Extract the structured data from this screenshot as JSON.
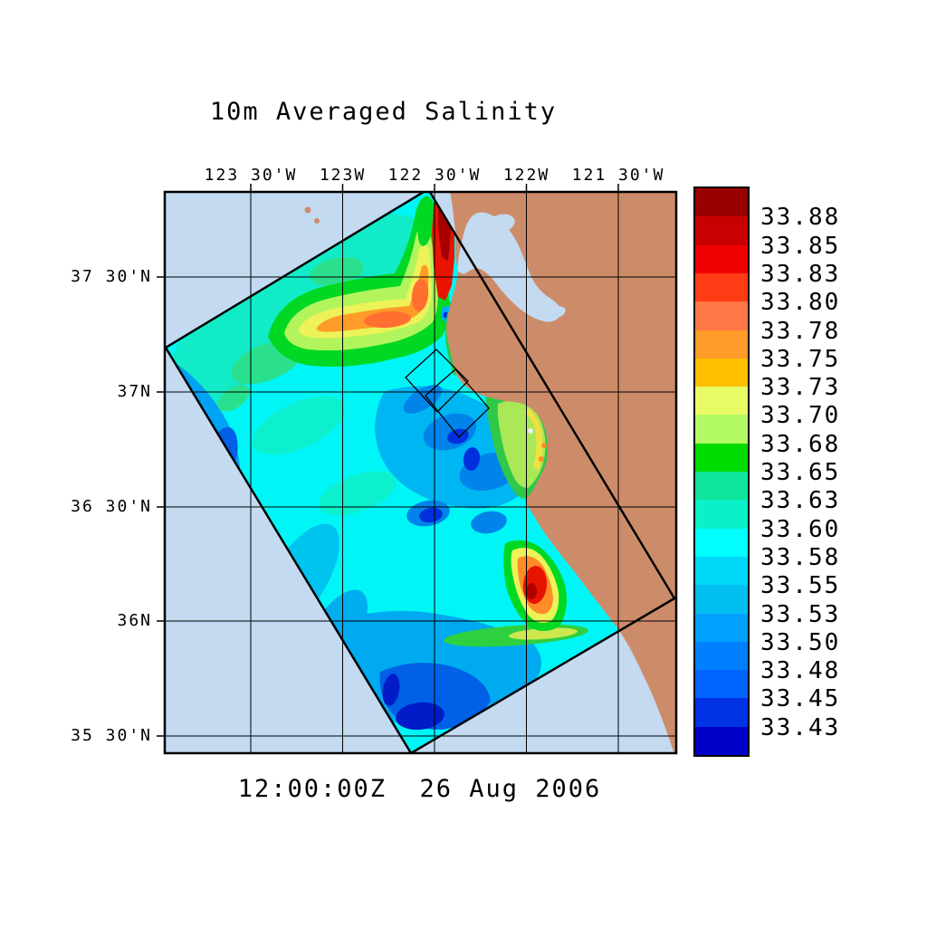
{
  "title": "10m Averaged Salinity",
  "timestamp": "12:00:00Z  26 Aug 2006",
  "axes": {
    "lon_tick_labels": [
      "123 30'W",
      "123W",
      "122 30'W",
      "122W",
      "121 30'W"
    ],
    "lat_tick_labels": [
      "37 30'N",
      "37N",
      "36 30'N",
      "36N",
      "35 30'N"
    ]
  },
  "colorbar": {
    "tick_labels": [
      "33.88",
      "33.85",
      "33.83",
      "33.80",
      "33.78",
      "33.75",
      "33.73",
      "33.70",
      "33.68",
      "33.65",
      "33.63",
      "33.60",
      "33.58",
      "33.55",
      "33.53",
      "33.50",
      "33.48",
      "33.45",
      "33.43"
    ],
    "band_colors_top_to_bottom": [
      "#990000",
      "#C80000",
      "#EE0000",
      "#FF3C14",
      "#FF7846",
      "#FF9B28",
      "#FFBE00",
      "#E8FA64",
      "#B4FA64",
      "#00DC00",
      "#0FE69B",
      "#0AF0C8",
      "#00FFFF",
      "#00D8F8",
      "#00BEF0",
      "#00A0FF",
      "#0080FF",
      "#0064FF",
      "#0032E6",
      "#0000C8"
    ],
    "contour_interval": 0.025
  },
  "map": {
    "colors": {
      "ocean_background": "#C3DAF1",
      "land": "#CD8C69",
      "field_base_cyan": "#00F6F6",
      "frame": "#000000"
    },
    "overlays": [
      "rotated model domain outline",
      "two nested sampling boxes near Monterey Bay",
      "lat-lon grid"
    ]
  },
  "chart_data": {
    "type": "heatmap",
    "title": "10m Averaged Salinity",
    "valid_time_label": "12:00:00Z  26 Aug 2006",
    "quantity": "10m averaged salinity",
    "x_tick_labels": [
      "123 30'W",
      "123W",
      "122 30'W",
      "122W",
      "121 30'W"
    ],
    "y_tick_labels": [
      "37 30'N",
      "37N",
      "36 30'N",
      "36N",
      "35 30'N"
    ],
    "approx_lon_range_deg_w": [
      123.97,
      121.2
    ],
    "approx_lat_range_deg_n": [
      35.42,
      37.87
    ],
    "colorbar_boundaries": [
      33.88,
      33.85,
      33.83,
      33.8,
      33.78,
      33.75,
      33.73,
      33.7,
      33.68,
      33.65,
      33.63,
      33.6,
      33.58,
      33.55,
      33.53,
      33.5,
      33.48,
      33.45,
      33.43
    ],
    "grid": "on",
    "legend_position": "right colorbar",
    "high_salinity_readings": [
      {
        "location": "coastal strip at Golden Gate / San Francisco Bay mouth",
        "value": "> 33.85"
      },
      {
        "location": "coastal patch near 36 10'N 121 50'W (Point Sur)",
        "value": "33.80 - 33.88"
      },
      {
        "location": "offshore tongue near 37 15'N, 123W - 122 40'W",
        "value": "33.70 - 33.78"
      }
    ],
    "low_salinity_readings": [
      {
        "location": "band along southwest domain edge near 36 30'N 123 40'W",
        "value": "33.43 - 33.50"
      },
      {
        "location": "eddy south of Monterey Bay boxes near 36 50'N 122 30'W",
        "value": "33.45 - 33.53"
      },
      {
        "location": "southern domain near 35 40'N 122 40'W",
        "value": "33.43 - 33.50"
      }
    ],
    "background_value_range": [
      33.55,
      33.63
    ]
  }
}
